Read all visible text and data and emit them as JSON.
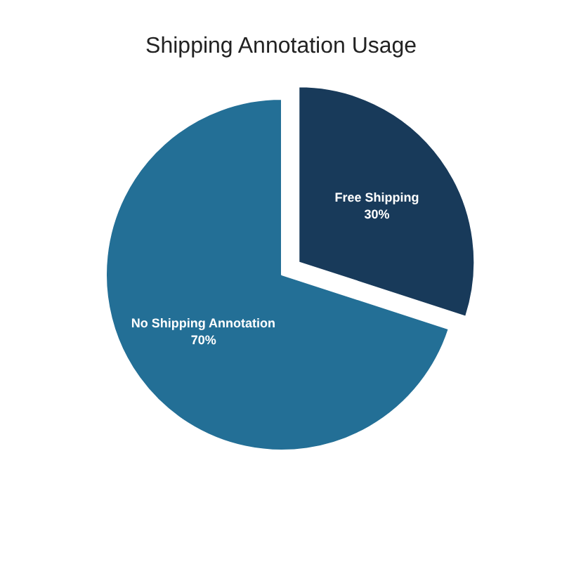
{
  "chart_data": {
    "type": "pie",
    "title": "Shipping Annotation Usage",
    "categories": [
      "Free Shipping",
      "No Shipping Annotation"
    ],
    "values": [
      30,
      70
    ],
    "colors": [
      "#183a5a",
      "#236f96"
    ],
    "value_labels": [
      "30%",
      "70%"
    ]
  }
}
